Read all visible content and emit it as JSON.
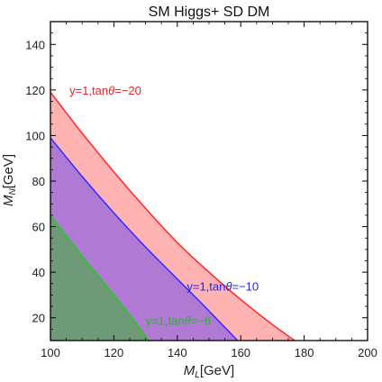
{
  "chart_data": {
    "type": "area",
    "title": "SM Higgs+ SD DM",
    "xlabel": {
      "main": "M",
      "sub": "L",
      "unit": "[GeV]"
    },
    "ylabel": {
      "main": "M",
      "sub": "N",
      "unit": "[GeV]"
    },
    "xlim": [
      100,
      200
    ],
    "ylim": [
      10,
      150
    ],
    "xticks": [
      100,
      120,
      140,
      160,
      180,
      200
    ],
    "yticks": [
      20,
      40,
      60,
      80,
      100,
      120,
      140
    ],
    "series": [
      {
        "name": "y=1,tanθ=−20",
        "label_parts": [
          "y=1,tan",
          "θ",
          "=−20"
        ],
        "fill": "#ffb3b3",
        "stroke": "#ff3030",
        "label_color": "#e8262a",
        "label_at": [
          106,
          118
        ],
        "points": [
          [
            100,
            119
          ],
          [
            110,
            101
          ],
          [
            120,
            84
          ],
          [
            130,
            68
          ],
          [
            140,
            53
          ],
          [
            150,
            40
          ],
          [
            160,
            28
          ],
          [
            170,
            17
          ],
          [
            177,
            10
          ]
        ]
      },
      {
        "name": "y=1,tanθ=−10",
        "label_parts": [
          "y=1,tan",
          "θ",
          "=−10"
        ],
        "fill": "#b07ad4",
        "stroke": "#3333ff",
        "label_color": "#2222ee",
        "label_at": [
          143,
          32
        ],
        "points": [
          [
            100,
            99
          ],
          [
            110,
            82
          ],
          [
            120,
            66
          ],
          [
            130,
            51
          ],
          [
            140,
            37
          ],
          [
            150,
            23
          ],
          [
            159,
            10
          ]
        ]
      },
      {
        "name": "y=1,tanθ=−6",
        "label_parts": [
          "y=1,tan",
          "θ",
          "=−6"
        ],
        "fill": "#6e9a78",
        "stroke": "#22cc22",
        "label_color": "#22bb22",
        "label_at": [
          130,
          17
        ],
        "points": [
          [
            100,
            65
          ],
          [
            110,
            47
          ],
          [
            120,
            30
          ],
          [
            130,
            12
          ],
          [
            131,
            10
          ]
        ]
      }
    ],
    "grid": false,
    "legend": "none"
  }
}
